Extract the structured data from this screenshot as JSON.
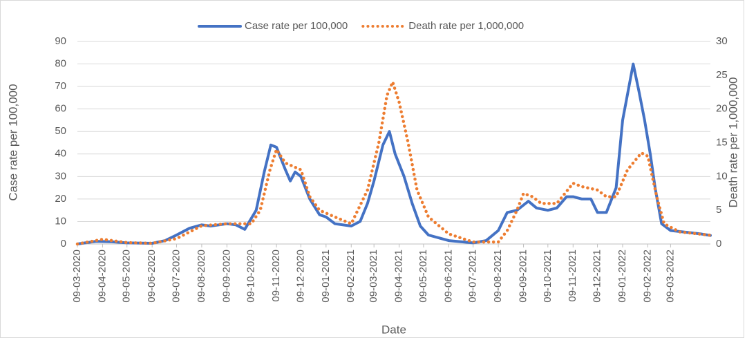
{
  "chart_data": {
    "type": "line",
    "x_label": "Date",
    "y_label": "Case rate per 100,000",
    "y2_label": "Death rate per 1,000,000",
    "xlim": [
      "09-03-2020",
      "27-04-2022"
    ],
    "xticks": [
      "09-03-2020",
      "09-04-2020",
      "09-05-2020",
      "09-06-2020",
      "09-07-2020",
      "09-08-2020",
      "09-09-2020",
      "09-10-2020",
      "09-11-2020",
      "09-12-2020",
      "09-01-2021",
      "09-02-2021",
      "09-03-2021",
      "09-04-2021",
      "09-05-2021",
      "09-06-2021",
      "09-07-2021",
      "09-08-2021",
      "09-09-2021",
      "09-10-2021",
      "09-11-2021",
      "09-12-2021",
      "09-01-2022",
      "09-02-2022",
      "09-03-2022"
    ],
    "ylim": [
      0,
      90
    ],
    "yticks": [
      0,
      10,
      20,
      30,
      40,
      50,
      60,
      70,
      80,
      90
    ],
    "y2lim": [
      0,
      30
    ],
    "y2ticks": [
      0,
      5,
      10,
      15,
      20,
      25,
      30
    ],
    "grid": true,
    "legend": "top",
    "series": [
      {
        "name": "Case rate per 100,000",
        "color": "#4472c4",
        "style": "solid",
        "x": [
          "09-03-2020",
          "01-04-2020",
          "20-04-2020",
          "09-05-2020",
          "09-06-2020",
          "25-06-2020",
          "09-07-2020",
          "25-07-2020",
          "09-08-2020",
          "20-08-2020",
          "09-09-2020",
          "20-09-2020",
          "01-10-2020",
          "15-10-2020",
          "25-10-2020",
          "02-11-2020",
          "09-11-2020",
          "20-11-2020",
          "26-11-2020",
          "02-12-2020",
          "09-12-2020",
          "20-12-2020",
          "01-01-2021",
          "09-01-2021",
          "20-01-2021",
          "09-02-2021",
          "20-02-2021",
          "01-03-2021",
          "09-03-2021",
          "20-03-2021",
          "28-03-2021",
          "04-04-2021",
          "15-04-2021",
          "25-04-2021",
          "05-05-2021",
          "15-05-2021",
          "09-06-2021",
          "09-07-2021",
          "25-07-2021",
          "09-08-2021",
          "20-08-2021",
          "01-09-2021",
          "15-09-2021",
          "25-09-2021",
          "09-10-2021",
          "20-10-2021",
          "01-11-2021",
          "09-11-2021",
          "20-11-2021",
          "01-12-2021",
          "09-12-2021",
          "20-12-2021",
          "01-01-2022",
          "09-01-2022",
          "22-01-2022",
          "29-01-2022",
          "05-02-2022",
          "12-02-2022",
          "18-02-2022",
          "26-02-2022",
          "09-03-2022",
          "15-04-2022",
          "27-04-2022"
        ],
        "values": [
          0,
          1.2,
          1,
          0.5,
          0.3,
          1.5,
          4,
          7,
          8.5,
          8,
          9,
          8.5,
          6.5,
          15,
          32,
          44,
          43,
          33,
          28,
          32,
          30,
          20,
          13,
          12,
          9,
          8,
          10,
          18,
          28,
          44,
          50,
          40,
          30,
          18,
          8,
          4,
          1.5,
          0.5,
          1.5,
          6,
          14,
          15,
          19,
          16,
          15,
          16,
          21,
          21,
          20,
          20,
          14,
          14,
          25,
          55,
          80,
          68,
          55,
          40,
          25,
          9,
          6,
          4.5,
          3.8
        ]
      },
      {
        "name": "Death rate per 1,000,000",
        "color": "#ed7d31",
        "style": "dotted",
        "axis": "y2",
        "x": [
          "09-03-2020",
          "09-04-2020",
          "09-05-2020",
          "09-06-2020",
          "09-07-2020",
          "09-08-2020",
          "09-09-2020",
          "09-10-2020",
          "20-10-2020",
          "01-11-2020",
          "09-11-2020",
          "20-11-2020",
          "09-12-2020",
          "20-12-2020",
          "01-01-2021",
          "20-01-2021",
          "09-02-2021",
          "01-03-2021",
          "15-03-2021",
          "25-03-2021",
          "01-04-2021",
          "09-04-2021",
          "20-04-2021",
          "01-05-2021",
          "15-05-2021",
          "09-06-2021",
          "09-07-2021",
          "09-08-2021",
          "20-08-2021",
          "01-09-2021",
          "09-09-2021",
          "20-09-2021",
          "01-10-2021",
          "20-10-2021",
          "09-11-2021",
          "20-11-2021",
          "09-12-2021",
          "20-12-2021",
          "01-01-2022",
          "15-01-2022",
          "01-02-2022",
          "09-02-2022",
          "20-02-2022",
          "01-03-2022",
          "20-03-2022",
          "27-04-2022"
        ],
        "values": [
          0,
          0.7,
          0.2,
          0.1,
          0.8,
          2.7,
          3,
          3,
          5,
          11,
          14,
          12,
          11,
          7,
          5,
          4,
          3,
          8,
          15,
          22,
          24,
          21,
          15,
          8,
          4,
          1.5,
          0.3,
          0.3,
          2,
          5,
          7.5,
          7,
          6,
          6,
          9,
          8.5,
          8,
          7,
          7,
          11,
          13.5,
          13,
          7,
          3,
          1.8,
          1.3
        ]
      }
    ]
  }
}
